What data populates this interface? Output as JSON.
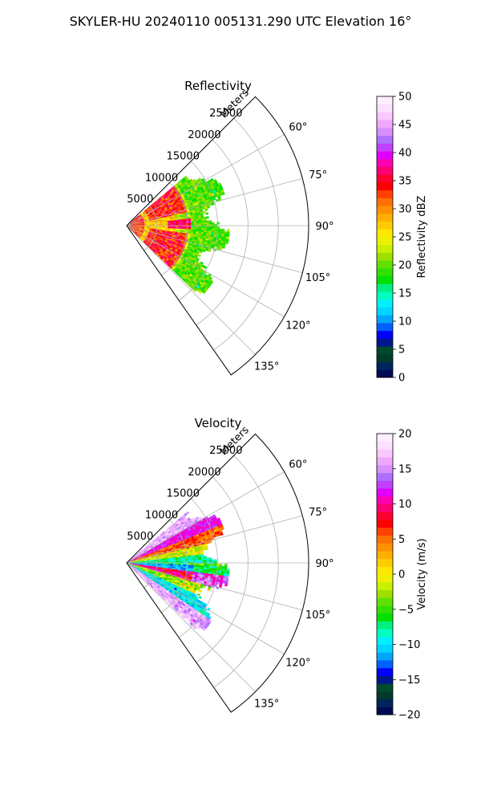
{
  "figure": {
    "suptitle": "SKYLER-HU  20240110  005131.290 UTC Elevation 16°"
  },
  "chart_data": [
    {
      "type": "heatmap",
      "title": "Reflectivity",
      "projection": "polar-sector",
      "radial_label": "Meters",
      "r_ticks": [
        5000,
        10000,
        15000,
        20000,
        25000
      ],
      "r_tick_labels": [
        "5000",
        "10000",
        "15000",
        "20000",
        "25000"
      ],
      "r_lim": [
        0,
        30000
      ],
      "theta_ticks_deg": [
        60,
        75,
        90,
        105,
        120,
        135
      ],
      "theta_tick_labels": [
        "60°",
        "75°",
        "90°",
        "105°",
        "120°",
        "135°"
      ],
      "theta_lim_deg": [
        45,
        145
      ],
      "grid": true,
      "data_range_m": [
        0,
        17000
      ],
      "colorbar": {
        "label": "Reflectivity dBZ",
        "vmin": 0,
        "vmax": 50,
        "ticks": [
          0,
          5,
          10,
          15,
          20,
          25,
          30,
          35,
          40,
          45,
          50
        ],
        "tick_labels": [
          "0",
          "5",
          "10",
          "15",
          "20",
          "25",
          "30",
          "35",
          "40",
          "45",
          "50"
        ],
        "colors": [
          "#000a55",
          "#00245c",
          "#003b2e",
          "#004a2e",
          "#00168c",
          "#0000ff",
          "#0060ff",
          "#00a5ff",
          "#00d6ff",
          "#00f0ff",
          "#00ffc0",
          "#00f080",
          "#00e000",
          "#30e000",
          "#60e000",
          "#9de000",
          "#c8f000",
          "#eff000",
          "#ffe800",
          "#ffcc00",
          "#ffaf00",
          "#ff9000",
          "#ff7000",
          "#ff4000",
          "#ff0000",
          "#ff0030",
          "#ff0070",
          "#ff00b0",
          "#e000ff",
          "#c040ff",
          "#b070ff",
          "#d890ff",
          "#f0a8ff",
          "#f8c8ff",
          "#fce0ff",
          "#ffeefd"
        ]
      }
    },
    {
      "type": "heatmap",
      "title": "Velocity",
      "projection": "polar-sector",
      "radial_label": "Meters",
      "r_ticks": [
        5000,
        10000,
        15000,
        20000,
        25000
      ],
      "r_tick_labels": [
        "5000",
        "10000",
        "15000",
        "20000",
        "25000"
      ],
      "r_lim": [
        0,
        30000
      ],
      "theta_ticks_deg": [
        60,
        75,
        90,
        105,
        120,
        135
      ],
      "theta_tick_labels": [
        "60°",
        "75°",
        "90°",
        "105°",
        "120°",
        "135°"
      ],
      "theta_lim_deg": [
        45,
        145
      ],
      "grid": true,
      "data_range_m": [
        0,
        17000
      ],
      "colorbar": {
        "label": "Velocity (m/s)",
        "vmin": -20,
        "vmax": 20,
        "ticks": [
          -20,
          -15,
          -10,
          -5,
          0,
          5,
          10,
          15,
          20
        ],
        "tick_labels": [
          "−20",
          "−15",
          "−10",
          "−5",
          "0",
          "5",
          "10",
          "15",
          "20"
        ],
        "colors": [
          "#000a55",
          "#00245c",
          "#003b2e",
          "#004a2e",
          "#00168c",
          "#0000ff",
          "#0060ff",
          "#00a5ff",
          "#00d6ff",
          "#00f0ff",
          "#00ffc0",
          "#00f080",
          "#00e000",
          "#30e000",
          "#60e000",
          "#9de000",
          "#c8f000",
          "#eff000",
          "#ffe800",
          "#ffcc00",
          "#ffaf00",
          "#ff9000",
          "#ff7000",
          "#ff4000",
          "#ff0000",
          "#ff0030",
          "#ff0070",
          "#ff00b0",
          "#e000ff",
          "#c040ff",
          "#b070ff",
          "#d890ff",
          "#f0a8ff",
          "#f8c8ff",
          "#fce0ff",
          "#ffeefd"
        ]
      }
    }
  ]
}
